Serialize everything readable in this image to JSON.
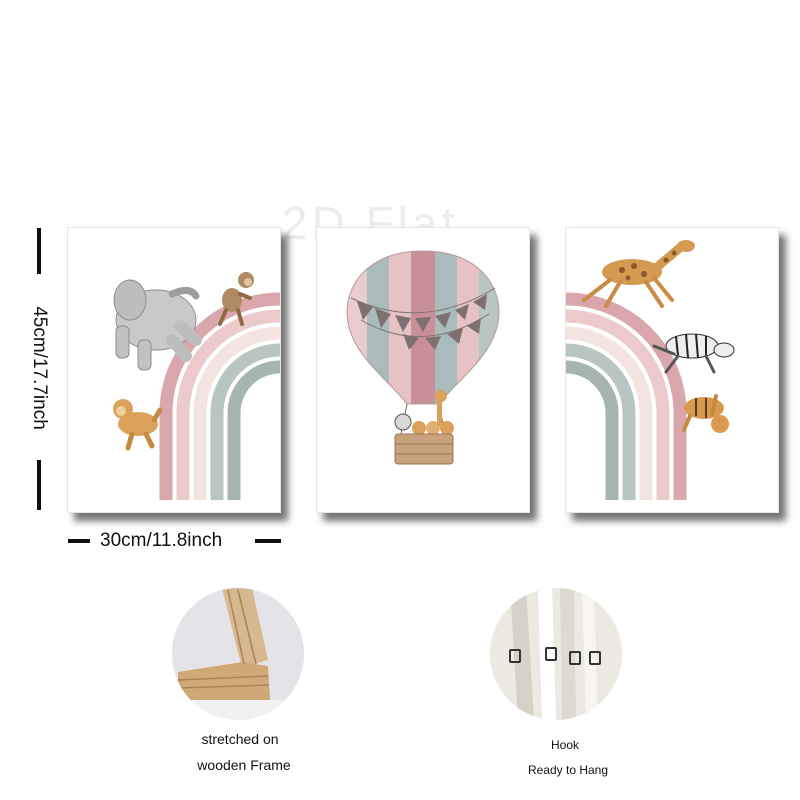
{
  "watermark": "2D Flat",
  "dimensions": {
    "height_label": "45cm/17.7inch",
    "width_label": "30cm/11.8inch"
  },
  "features": {
    "frame": {
      "line1": "stretched on",
      "line2": "wooden Frame"
    },
    "hook": {
      "line1": "Hook",
      "line2": "Ready to Hang"
    }
  },
  "colors": {
    "rainbow_rose": "#d9a6ab",
    "rainbow_pink": "#eccacb",
    "rainbow_light": "#f3e4e1",
    "rainbow_sage": "#b9c5c1",
    "rainbow_grey": "#a6b4b2",
    "balloon_pink": "#e6c2c4",
    "balloon_teal": "#a9bbbb",
    "bunting": "#7e7070",
    "basket": "#c8a27b"
  }
}
